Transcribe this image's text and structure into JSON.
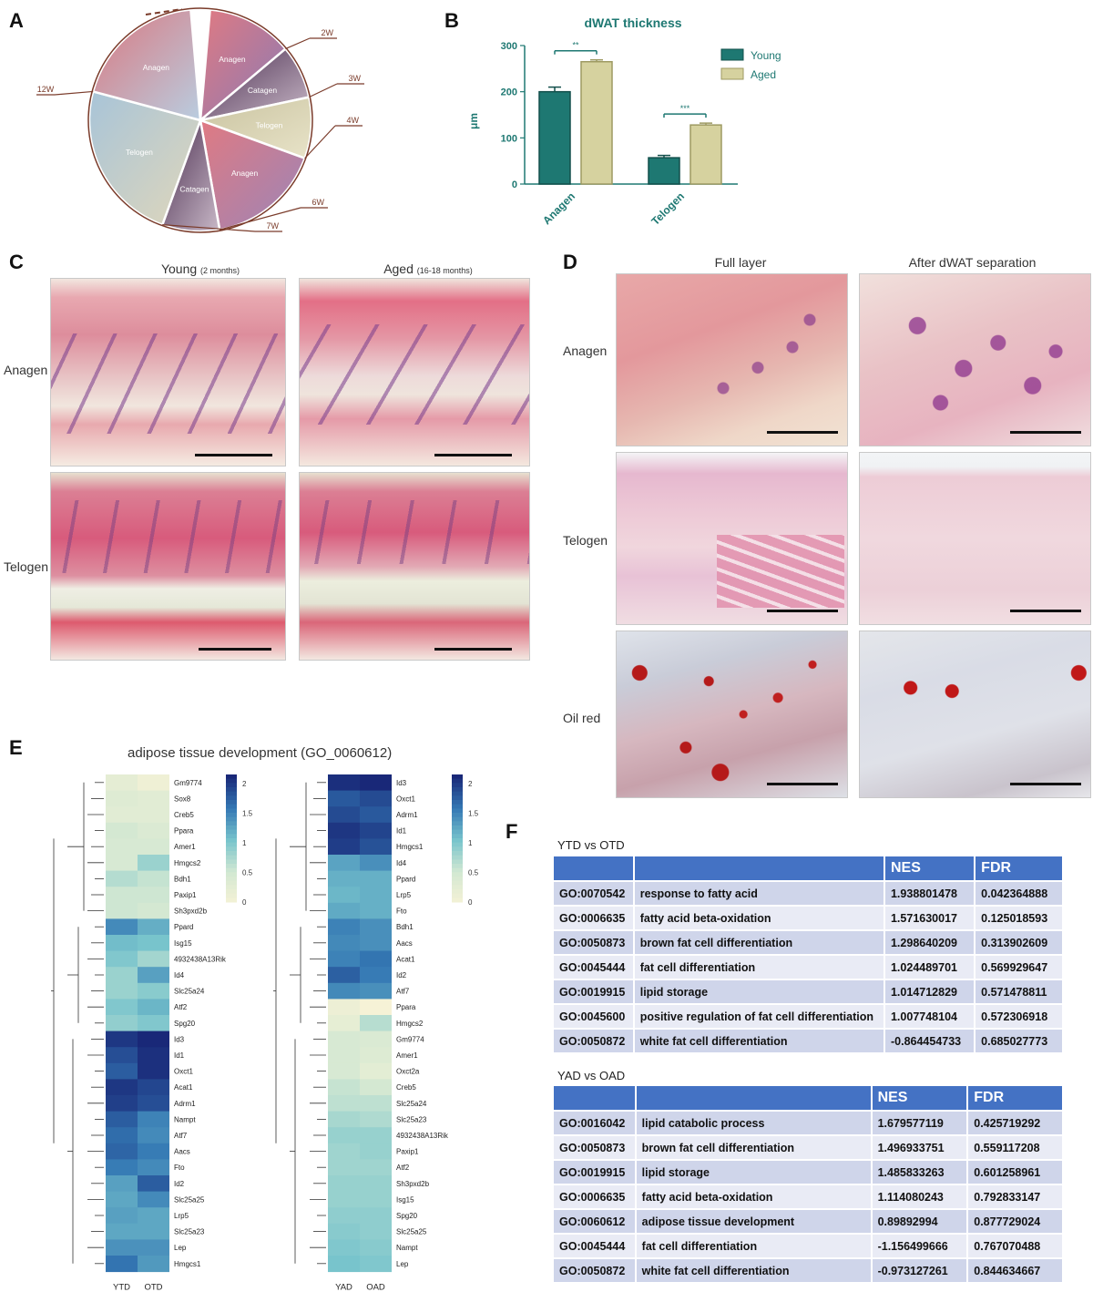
{
  "panels": {
    "A": "A",
    "B": "B",
    "C": "C",
    "D": "D",
    "E": "E",
    "F": "F"
  },
  "panelA": {
    "slices": [
      {
        "label": "Anagen",
        "color_a": "#e07a82",
        "color_b": "#8a7bb5"
      },
      {
        "label": "Catagen",
        "color_a": "#4a2d4f",
        "color_b": "#c9b9c8"
      },
      {
        "label": "Telogen",
        "color_a": "#c9c3a0",
        "color_b": "#e8e3c8"
      },
      {
        "label": "Anagen",
        "color_a": "#e07a82",
        "color_b": "#9b85b8"
      },
      {
        "label": "Catagen",
        "color_a": "#4a2d4f",
        "color_b": "#c9b9c8"
      },
      {
        "label": "Telogen",
        "color_a": "#a8c4d8",
        "color_b": "#e0d7bb"
      },
      {
        "label": "Anagen",
        "color_a": "#d97880",
        "color_b": "#b9cde0"
      }
    ],
    "ticks": [
      "2W",
      "3W",
      "4W",
      "6W",
      "7W",
      "12W"
    ]
  },
  "chart_data": {
    "type": "bar",
    "title": "dWAT thickness",
    "ylabel": "μm",
    "categories": [
      "Anagen",
      "Telogen"
    ],
    "series": [
      {
        "name": "Young",
        "values": [
          200,
          57
        ],
        "errors": [
          10,
          5
        ],
        "color": "#1e7872"
      },
      {
        "name": "Aged",
        "values": [
          265,
          128
        ],
        "errors": [
          4,
          4
        ],
        "color": "#d6d29f"
      }
    ],
    "ylim": [
      0,
      300
    ],
    "yticks": [
      0,
      100,
      200,
      300
    ],
    "significance": [
      "**",
      "***"
    ],
    "legend_position": "top-right"
  },
  "panelC": {
    "col1": "Young",
    "col1_small": "(2 months)",
    "col2": "Aged",
    "col2_small": "(16-18 months)",
    "row1": "Anagen",
    "row2": "Telogen"
  },
  "panelD": {
    "col1": "Full layer",
    "col2": "After dWAT separation",
    "row1": "Anagen",
    "row2": "Telogen",
    "row3": "Oil red"
  },
  "panelE": {
    "title": "adipose tissue development (GO_0060612)",
    "left_genes": [
      "Gm9774",
      "Sox8",
      "Creb5",
      "Ppara",
      "Amer1",
      "Hmgcs2",
      "Bdh1",
      "Paxip1",
      "Sh3pxd2b",
      "Ppard",
      "Isg15",
      "4932438A13Rik",
      "Id4",
      "Slc25a24",
      "Atf2",
      "Spg20",
      "Id3",
      "Id1",
      "Oxct1",
      "Acat1",
      "Adrm1",
      "Nampt",
      "Atf7",
      "Aacs",
      "Fto",
      "Id2",
      "Slc25a25",
      "Lrp5",
      "Slc25a23",
      "Lep",
      "Hmgcs1"
    ],
    "left_values": [
      [
        0.25,
        0.1
      ],
      [
        0.35,
        0.3
      ],
      [
        0.3,
        0.3
      ],
      [
        0.5,
        0.4
      ],
      [
        0.45,
        0.45
      ],
      [
        0.45,
        0.85
      ],
      [
        0.7,
        0.6
      ],
      [
        0.55,
        0.55
      ],
      [
        0.55,
        0.5
      ],
      [
        1.45,
        1.2
      ],
      [
        1.1,
        1.05
      ],
      [
        1.0,
        0.8
      ],
      [
        0.85,
        1.3
      ],
      [
        0.85,
        0.95
      ],
      [
        1.0,
        1.15
      ],
      [
        0.9,
        1.0
      ],
      [
        2.0,
        2.1
      ],
      [
        1.85,
        2.05
      ],
      [
        1.75,
        2.05
      ],
      [
        2.0,
        1.9
      ],
      [
        1.95,
        1.85
      ],
      [
        1.75,
        1.5
      ],
      [
        1.65,
        1.45
      ],
      [
        1.7,
        1.55
      ],
      [
        1.55,
        1.45
      ],
      [
        1.3,
        1.75
      ],
      [
        1.25,
        1.45
      ],
      [
        1.3,
        1.25
      ],
      [
        1.25,
        1.25
      ],
      [
        1.4,
        1.4
      ],
      [
        1.6,
        1.35
      ]
    ],
    "left_cols": [
      "YTD",
      "OTD"
    ],
    "left_scale": [
      "2",
      "1.5",
      "1",
      "0.5",
      "0"
    ],
    "right_genes": [
      "Id3",
      "Oxct1",
      "Adrm1",
      "Id1",
      "Hmgcs1",
      "Id4",
      "Ppard",
      "Lrp5",
      "Fto",
      "Bdh1",
      "Aacs",
      "Acat1",
      "Id2",
      "Atf7",
      "Ppara",
      "Hmgcs2",
      "Gm9774",
      "Amer1",
      "Oxct2a",
      "Creb5",
      "Slc25a24",
      "Slc25a23",
      "4932438A13Rik",
      "Paxip1",
      "Atf2",
      "Sh3pxd2b",
      "Isg15",
      "Spg20",
      "Slc25a25",
      "Nampt",
      "Lep"
    ],
    "right_values": [
      [
        2.25,
        2.3
      ],
      [
        1.95,
        2.05
      ],
      [
        2.05,
        1.95
      ],
      [
        2.2,
        2.1
      ],
      [
        2.15,
        2.0
      ],
      [
        1.4,
        1.55
      ],
      [
        1.3,
        1.3
      ],
      [
        1.25,
        1.3
      ],
      [
        1.35,
        1.3
      ],
      [
        1.65,
        1.55
      ],
      [
        1.6,
        1.55
      ],
      [
        1.65,
        1.75
      ],
      [
        1.9,
        1.7
      ],
      [
        1.6,
        1.55
      ],
      [
        0.15,
        0.0
      ],
      [
        0.25,
        0.75
      ],
      [
        0.5,
        0.45
      ],
      [
        0.5,
        0.4
      ],
      [
        0.5,
        0.3
      ],
      [
        0.65,
        0.55
      ],
      [
        0.7,
        0.7
      ],
      [
        0.85,
        0.8
      ],
      [
        0.95,
        0.95
      ],
      [
        0.9,
        0.95
      ],
      [
        0.9,
        0.9
      ],
      [
        0.95,
        0.95
      ],
      [
        0.95,
        0.95
      ],
      [
        1.0,
        1.0
      ],
      [
        1.05,
        1.0
      ],
      [
        1.1,
        1.05
      ],
      [
        1.15,
        1.1
      ]
    ],
    "right_cols": [
      "YAD",
      "OAD"
    ],
    "right_scale": [
      "2",
      "1.5",
      "1",
      "0.5",
      "0"
    ]
  },
  "panelF": {
    "t1_title": "YTD vs OTD",
    "t2_title": "YAD vs OAD",
    "headers": [
      "",
      "",
      "NES",
      "FDR"
    ],
    "t1_rows": [
      [
        "GO:0070542",
        "response to fatty acid",
        "1.938801478",
        "0.042364888"
      ],
      [
        "GO:0006635",
        "fatty acid beta-oxidation",
        "1.571630017",
        "0.125018593"
      ],
      [
        "GO:0050873",
        "brown fat cell differentiation",
        "1.298640209",
        "0.313902609"
      ],
      [
        "GO:0045444",
        "fat cell differentiation",
        "1.024489701",
        "0.569929647"
      ],
      [
        "GO:0019915",
        "lipid storage",
        "1.014712829",
        "0.571478811"
      ],
      [
        "GO:0045600",
        "positive regulation of fat cell differentiation",
        "1.007748104",
        "0.572306918"
      ],
      [
        "GO:0050872",
        "white fat cell differentiation",
        "-0.864454733",
        "0.685027773"
      ]
    ],
    "t2_rows": [
      [
        "GO:0016042",
        "lipid catabolic process",
        "1.679577119",
        "0.425719292"
      ],
      [
        "GO:0050873",
        "brown fat cell differentiation",
        "1.496933751",
        "0.559117208"
      ],
      [
        "GO:0019915",
        "lipid storage",
        "1.485833263",
        "0.601258961"
      ],
      [
        "GO:0006635",
        "fatty acid beta-oxidation",
        "1.114080243",
        "0.792833147"
      ],
      [
        "GO:0060612",
        "adipose tissue development",
        "0.89892994",
        "0.877729024"
      ],
      [
        "GO:0045444",
        "fat cell differentiation",
        "-1.156499666",
        "0.767070488"
      ],
      [
        "GO:0050872",
        "white fat cell differentiation",
        "-0.973127261",
        "0.844634667"
      ]
    ]
  }
}
